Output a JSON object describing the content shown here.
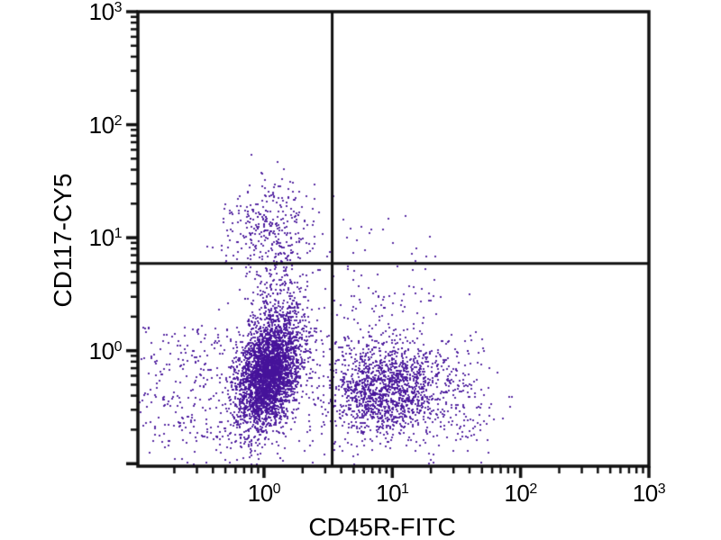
{
  "chart_data": {
    "type": "scatter",
    "variant": "flow-cytometry-dot-plot",
    "title": "",
    "xlabel": "CD45R-FITC",
    "ylabel": "CD117-CY5",
    "x_scale": "log",
    "y_scale": "log",
    "xlim": [
      0.104,
      1000
    ],
    "ylim": [
      0.095,
      1000
    ],
    "x_ticks": [
      1,
      10,
      100,
      1000
    ],
    "y_ticks": [
      1,
      10,
      100,
      1000
    ],
    "tick_label_base": "10",
    "x_tick_exponents": [
      "0",
      "1",
      "2",
      "3"
    ],
    "y_tick_exponents": [
      "0",
      "1",
      "2",
      "3"
    ],
    "grid": false,
    "legend": "none",
    "quadrant_gate": {
      "x": 3.4,
      "y": 5.9
    },
    "axis_color": "#111111",
    "text_color": "#000000",
    "dot_color": "#45129A",
    "dot_alpha": 0.88,
    "dot_size": 2,
    "populations": [
      {
        "name": "cd45r-neg-cd117-neg-main",
        "type": "gaussian",
        "count": 3200,
        "cx": 0.03,
        "cy": -0.2,
        "sx": 0.125,
        "sy": 0.235,
        "corr": 0.35
      },
      {
        "name": "main-upper-tail",
        "type": "gaussian",
        "count": 330,
        "cx": 0.1,
        "cy": 0.4,
        "sx": 0.13,
        "sy": 0.27,
        "corr": 0.25
      },
      {
        "name": "cd117-pos-progenitors",
        "type": "gaussian",
        "count": 300,
        "cx": 0.02,
        "cy": 1.1,
        "sx": 0.17,
        "sy": 0.22,
        "corr": 0.15
      },
      {
        "name": "cd45r-pos-bcells",
        "type": "gaussian",
        "count": 1200,
        "cx": 0.93,
        "cy": -0.34,
        "sx": 0.2,
        "sy": 0.2,
        "corr": 0.0
      },
      {
        "name": "bcell-right-tail",
        "type": "gaussian",
        "count": 170,
        "cx": 1.35,
        "cy": -0.33,
        "sx": 0.25,
        "sy": 0.25,
        "corr": 0.0
      },
      {
        "name": "bcell-mid-scatter",
        "type": "gaussian",
        "count": 140,
        "cx": 0.9,
        "cy": 0.25,
        "sx": 0.26,
        "sy": 0.3,
        "corr": 0.0
      },
      {
        "name": "background-scatter",
        "type": "uniform",
        "count": 430,
        "x_min": -0.98,
        "x_max": 1.75,
        "y_min": -1.0,
        "y_max": 0.15
      },
      {
        "name": "left-scatter",
        "type": "uniform",
        "count": 140,
        "x_min": -0.95,
        "x_max": -0.15,
        "y_min": -0.8,
        "y_max": 0.25
      },
      {
        "name": "upper-right-sparse",
        "type": "uniform",
        "count": 14,
        "x_min": 0.6,
        "x_max": 1.35,
        "y_min": 0.78,
        "y_max": 1.28
      }
    ]
  }
}
